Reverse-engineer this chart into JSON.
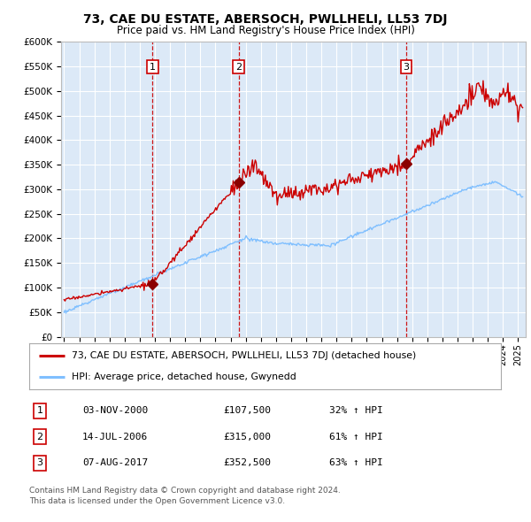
{
  "title": "73, CAE DU ESTATE, ABERSOCH, PWLLHELI, LL53 7DJ",
  "subtitle": "Price paid vs. HM Land Registry's House Price Index (HPI)",
  "background_color": "#ffffff",
  "plot_bg_color": "#dce9f7",
  "grid_color": "#ffffff",
  "red_line_color": "#cc0000",
  "blue_line_color": "#7fbfff",
  "sale_marker_color": "#8b0000",
  "sale_prices": [
    107500,
    315000,
    352500
  ],
  "sale_labels": [
    "1",
    "2",
    "3"
  ],
  "sale_pct": [
    "32% ↑ HPI",
    "61% ↑ HPI",
    "63% ↑ HPI"
  ],
  "sale_date_labels": [
    "03-NOV-2000",
    "14-JUL-2006",
    "07-AUG-2017"
  ],
  "sale_price_labels": [
    "£107,500",
    "£315,000",
    "£352,500"
  ],
  "ylim": [
    0,
    600000
  ],
  "yticks": [
    0,
    50000,
    100000,
    150000,
    200000,
    250000,
    300000,
    350000,
    400000,
    450000,
    500000,
    550000,
    600000
  ],
  "legend_entry1": "73, CAE DU ESTATE, ABERSOCH, PWLLHELI, LL53 7DJ (detached house)",
  "legend_entry2": "HPI: Average price, detached house, Gwynedd",
  "footer1": "Contains HM Land Registry data © Crown copyright and database right 2024.",
  "footer2": "This data is licensed under the Open Government Licence v3.0."
}
